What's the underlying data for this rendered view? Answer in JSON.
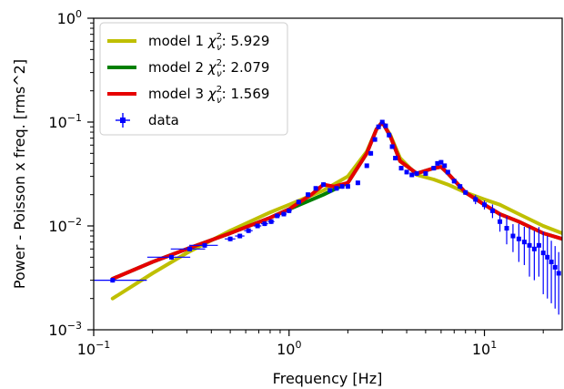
{
  "chart_data": {
    "type": "line",
    "xscale": "log",
    "yscale": "log",
    "xlim": [
      0.1,
      25
    ],
    "ylim": [
      0.001,
      1
    ],
    "xlabel": "Frequency [Hz]",
    "ylabel": "Power - Poisson x freq. [rms^2]",
    "xticks": [
      {
        "value": 0.1,
        "base": "10",
        "exp": "−1"
      },
      {
        "value": 1,
        "base": "10",
        "exp": "0"
      },
      {
        "value": 10,
        "base": "10",
        "exp": "1"
      }
    ],
    "yticks": [
      {
        "value": 0.001,
        "base": "10",
        "exp": "−3"
      },
      {
        "value": 0.01,
        "base": "10",
        "exp": "−2"
      },
      {
        "value": 0.1,
        "base": "10",
        "exp": "−1"
      },
      {
        "value": 1,
        "base": "10",
        "exp": "0"
      }
    ],
    "grid": false,
    "legend_position": "top-left",
    "series": [
      {
        "name": "model 1 χ²ᵥ: 5.929",
        "legend": {
          "prefix": "model 1 ",
          "chi": "χ",
          "sup": "2",
          "sub": "ν",
          "suffix": ": 5.929"
        },
        "kind": "line",
        "color": "#bfbf00",
        "x": [
          0.125,
          0.2,
          0.3,
          0.5,
          0.8,
          1.0,
          1.5,
          2.0,
          2.5,
          2.8,
          3.0,
          3.3,
          3.7,
          4.5,
          5.5,
          6.5,
          8.0,
          10.0,
          12.0,
          15.0,
          20.0,
          25.0
        ],
        "y": [
          0.002,
          0.0035,
          0.0055,
          0.009,
          0.0135,
          0.016,
          0.022,
          0.03,
          0.052,
          0.085,
          0.1,
          0.075,
          0.045,
          0.031,
          0.028,
          0.025,
          0.021,
          0.018,
          0.016,
          0.013,
          0.01,
          0.0085
        ]
      },
      {
        "name": "model 2 χ²ᵥ: 2.079",
        "legend": {
          "prefix": "model 2 ",
          "chi": "χ",
          "sup": "2",
          "sub": "ν",
          "suffix": ": 2.079"
        },
        "kind": "line",
        "color": "#008000",
        "x": [
          0.125,
          0.2,
          0.3,
          0.5,
          0.8,
          1.0,
          1.5,
          2.0,
          2.5,
          2.8,
          3.0,
          3.3,
          3.7,
          4.5,
          5.5,
          6.0,
          6.5,
          8.0,
          10.0,
          12.0,
          15.0,
          20.0,
          25.0
        ],
        "y": [
          0.0031,
          0.0045,
          0.006,
          0.0085,
          0.012,
          0.0145,
          0.02,
          0.026,
          0.05,
          0.085,
          0.1,
          0.073,
          0.042,
          0.032,
          0.036,
          0.037,
          0.032,
          0.021,
          0.016,
          0.013,
          0.011,
          0.0085,
          0.0075
        ]
      },
      {
        "name": "model 3 χ²ᵥ: 1.569",
        "legend": {
          "prefix": "model 3 ",
          "chi": "χ",
          "sup": "2",
          "sub": "ν",
          "suffix": ": 1.569"
        },
        "kind": "line",
        "color": "#e60000",
        "x": [
          0.125,
          0.2,
          0.3,
          0.5,
          0.8,
          1.0,
          1.3,
          1.5,
          1.7,
          2.0,
          2.5,
          2.8,
          3.0,
          3.3,
          3.7,
          4.5,
          5.5,
          6.0,
          6.5,
          8.0,
          10.0,
          12.0,
          15.0,
          20.0,
          25.0
        ],
        "y": [
          0.0031,
          0.0045,
          0.006,
          0.0085,
          0.012,
          0.0145,
          0.02,
          0.025,
          0.024,
          0.026,
          0.05,
          0.085,
          0.1,
          0.073,
          0.042,
          0.032,
          0.036,
          0.037,
          0.032,
          0.021,
          0.016,
          0.013,
          0.011,
          0.0085,
          0.0075
        ]
      },
      {
        "name": "data",
        "legend": {
          "prefix": "data",
          "chi": "",
          "sup": "",
          "sub": "",
          "suffix": ""
        },
        "kind": "errorbar",
        "color": "#0000ff",
        "x": [
          0.125,
          0.25,
          0.31,
          0.37,
          0.5,
          0.56,
          0.62,
          0.69,
          0.75,
          0.81,
          0.87,
          0.94,
          1.0,
          1.12,
          1.25,
          1.37,
          1.5,
          1.62,
          1.75,
          1.87,
          2.0,
          2.25,
          2.5,
          2.62,
          2.75,
          2.87,
          3.0,
          3.12,
          3.25,
          3.37,
          3.5,
          3.75,
          4.0,
          4.25,
          4.5,
          5.0,
          5.5,
          5.75,
          6.0,
          6.25,
          6.5,
          7.0,
          7.5,
          8.0,
          9.0,
          10.0,
          11.0,
          12.0,
          13.0,
          14.0,
          15.0,
          16.0,
          17.0,
          18.0,
          19.0,
          20.0,
          21.0,
          22.0,
          23.0,
          24.0
        ],
        "y": [
          0.003,
          0.005,
          0.006,
          0.0065,
          0.0075,
          0.008,
          0.009,
          0.01,
          0.0105,
          0.011,
          0.0125,
          0.013,
          0.014,
          0.017,
          0.02,
          0.023,
          0.025,
          0.022,
          0.023,
          0.024,
          0.024,
          0.026,
          0.038,
          0.05,
          0.068,
          0.09,
          0.1,
          0.092,
          0.075,
          0.058,
          0.045,
          0.036,
          0.033,
          0.031,
          0.032,
          0.032,
          0.036,
          0.04,
          0.041,
          0.038,
          0.033,
          0.027,
          0.024,
          0.021,
          0.018,
          0.016,
          0.014,
          0.011,
          0.0095,
          0.008,
          0.0075,
          0.007,
          0.0065,
          0.006,
          0.0065,
          0.0055,
          0.005,
          0.0045,
          0.004,
          0.0035
        ],
        "xerr": [
          0.062,
          0.062,
          0.062,
          0.062,
          0.031,
          0.031,
          0.031,
          0.031,
          0.031,
          0.031,
          0.031,
          0.031,
          0.031,
          0.031,
          0.031,
          0.031,
          0.031,
          0.031,
          0.031,
          0.031,
          0.031,
          0.031,
          0.031,
          0.031,
          0.031,
          0.031,
          0.031,
          0.031,
          0.031,
          0.031,
          0.031,
          0.031,
          0.031,
          0.031,
          0.031,
          0.031,
          0.031,
          0.031,
          0.031,
          0.031,
          0.031,
          0.031,
          0.031,
          0.031,
          0.031,
          0.031,
          0.031,
          0.031,
          0.031,
          0.031,
          0.031,
          0.031,
          0.031,
          0.031,
          0.031,
          0.031,
          0.031,
          0.031,
          0.031,
          0.031
        ],
        "yerr_frac": [
          0.05,
          0.05,
          0.05,
          0.05,
          0.05,
          0.05,
          0.05,
          0.05,
          0.05,
          0.05,
          0.05,
          0.05,
          0.05,
          0.05,
          0.05,
          0.05,
          0.05,
          0.05,
          0.05,
          0.05,
          0.05,
          0.05,
          0.05,
          0.05,
          0.05,
          0.05,
          0.05,
          0.05,
          0.05,
          0.05,
          0.05,
          0.05,
          0.05,
          0.05,
          0.05,
          0.05,
          0.05,
          0.05,
          0.05,
          0.05,
          0.05,
          0.05,
          0.05,
          0.05,
          0.1,
          0.1,
          0.15,
          0.2,
          0.3,
          0.3,
          0.4,
          0.4,
          0.5,
          0.5,
          0.5,
          0.6,
          0.6,
          0.6,
          0.6,
          0.6
        ]
      }
    ]
  }
}
